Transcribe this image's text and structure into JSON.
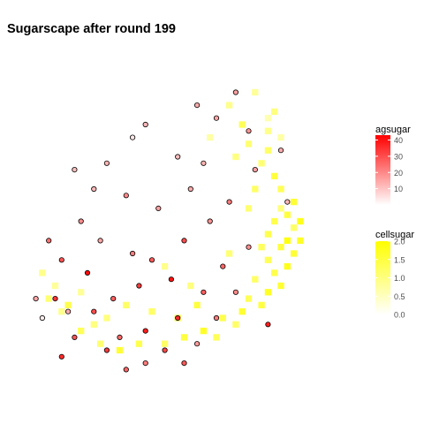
{
  "title": "Sugarscape after round 199",
  "colors": {
    "background": "#ffffff",
    "agent_outline": "#000000",
    "agent_low": "#ffffff",
    "agent_high": "#ff0000",
    "cell_low": "#ffffff",
    "cell_high": "#ffff00"
  },
  "chart_data": {
    "type": "scatter",
    "title": "Sugarscape after round 199",
    "xlabel": "",
    "ylabel": "",
    "grid": false,
    "axes_visible": false,
    "legend_placement": "right",
    "xlim": [
      0,
      50
    ],
    "ylim": [
      0,
      50
    ],
    "legends": [
      {
        "name": "agsugar",
        "type": "colorbar",
        "min": 0,
        "max": 43,
        "ticks": [
          10,
          20,
          30,
          40
        ],
        "tick_labels": [
          "10",
          "20",
          "30",
          "40"
        ],
        "color_low": "#ffffff",
        "color_high": "#ff0000"
      },
      {
        "name": "cellsugar",
        "type": "colorbar",
        "min": 0,
        "max": 2,
        "ticks": [
          0,
          0.5,
          1,
          1.5,
          2
        ],
        "tick_labels": [
          "0.0",
          "0.5",
          "1.0",
          "1.5",
          "2.0"
        ],
        "color_low": "#ffffff",
        "color_high": "#ffff00"
      }
    ],
    "series": [
      {
        "layer": "cells",
        "color_by": "cellsugar",
        "description_source": "visible yellow tiles",
        "points": [
          {
            "x": 36,
            "y": 45,
            "cellsugar": 0.8
          },
          {
            "x": 39,
            "y": 42,
            "cellsugar": 1.0
          },
          {
            "x": 38,
            "y": 41,
            "cellsugar": 0.6
          },
          {
            "x": 34,
            "y": 40,
            "cellsugar": 1.3
          },
          {
            "x": 38,
            "y": 39,
            "cellsugar": 0.9
          },
          {
            "x": 40,
            "y": 38,
            "cellsugar": 0.7
          },
          {
            "x": 38,
            "y": 36,
            "cellsugar": 1.2
          },
          {
            "x": 37,
            "y": 34,
            "cellsugar": 1.1
          },
          {
            "x": 39,
            "y": 32,
            "cellsugar": 1.5
          },
          {
            "x": 40,
            "y": 30,
            "cellsugar": 1.3
          },
          {
            "x": 42,
            "y": 28,
            "cellsugar": 1.6
          },
          {
            "x": 40,
            "y": 27,
            "cellsugar": 1.0
          },
          {
            "x": 41,
            "y": 26,
            "cellsugar": 1.5
          },
          {
            "x": 39,
            "y": 25,
            "cellsugar": 1.4
          },
          {
            "x": 43,
            "y": 25,
            "cellsugar": 1.8
          },
          {
            "x": 42,
            "y": 24,
            "cellsugar": 1.2
          },
          {
            "x": 38,
            "y": 23,
            "cellsugar": 1.4
          },
          {
            "x": 41,
            "y": 22,
            "cellsugar": 1.9
          },
          {
            "x": 43,
            "y": 22,
            "cellsugar": 1.7
          },
          {
            "x": 40,
            "y": 21,
            "cellsugar": 1.5
          },
          {
            "x": 42,
            "y": 20,
            "cellsugar": 1.6
          },
          {
            "x": 38,
            "y": 19,
            "cellsugar": 1.3
          },
          {
            "x": 41,
            "y": 18,
            "cellsugar": 1.8
          },
          {
            "x": 39,
            "y": 17,
            "cellsugar": 1.4
          },
          {
            "x": 36,
            "y": 16,
            "cellsugar": 1.2
          },
          {
            "x": 40,
            "y": 15,
            "cellsugar": 1.6
          },
          {
            "x": 38,
            "y": 14,
            "cellsugar": 1.7
          },
          {
            "x": 35,
            "y": 13,
            "cellsugar": 1.3
          },
          {
            "x": 37,
            "y": 12,
            "cellsugar": 1.5
          },
          {
            "x": 34,
            "y": 11,
            "cellsugar": 1.6
          },
          {
            "x": 31,
            "y": 10,
            "cellsugar": 1.4
          },
          {
            "x": 33,
            "y": 9,
            "cellsugar": 1.2
          },
          {
            "x": 28,
            "y": 8,
            "cellsugar": 1.7
          },
          {
            "x": 30,
            "y": 7,
            "cellsugar": 1.3
          },
          {
            "x": 25,
            "y": 7,
            "cellsugar": 1.5
          },
          {
            "x": 22,
            "y": 6,
            "cellsugar": 1.2
          },
          {
            "x": 18,
            "y": 6,
            "cellsugar": 1.4
          },
          {
            "x": 15,
            "y": 5,
            "cellsugar": 1.6
          },
          {
            "x": 12,
            "y": 6,
            "cellsugar": 1.1
          },
          {
            "x": 9,
            "y": 8,
            "cellsugar": 1.3
          },
          {
            "x": 11,
            "y": 9,
            "cellsugar": 1.0
          },
          {
            "x": 6,
            "y": 11,
            "cellsugar": 0.9
          },
          {
            "x": 4,
            "y": 13,
            "cellsugar": 1.1
          },
          {
            "x": 7,
            "y": 12,
            "cellsugar": 1.4
          },
          {
            "x": 20,
            "y": 11,
            "cellsugar": 1.2
          },
          {
            "x": 24,
            "y": 10,
            "cellsugar": 1.3
          },
          {
            "x": 27,
            "y": 12,
            "cellsugar": 1.5
          },
          {
            "x": 13,
            "y": 10,
            "cellsugar": 1.0
          },
          {
            "x": 5,
            "y": 15,
            "cellsugar": 0.8
          },
          {
            "x": 3,
            "y": 17,
            "cellsugar": 0.9
          },
          {
            "x": 29,
            "y": 38,
            "cellsugar": 0.7
          },
          {
            "x": 32,
            "y": 43,
            "cellsugar": 0.9
          },
          {
            "x": 35,
            "y": 37,
            "cellsugar": 1.1
          },
          {
            "x": 33,
            "y": 35,
            "cellsugar": 1.0
          },
          {
            "x": 36,
            "y": 30,
            "cellsugar": 1.2
          },
          {
            "x": 35,
            "y": 27,
            "cellsugar": 1.1
          },
          {
            "x": 37,
            "y": 21,
            "cellsugar": 1.3
          },
          {
            "x": 32,
            "y": 20,
            "cellsugar": 1.1
          },
          {
            "x": 16,
            "y": 12,
            "cellsugar": 1.2
          },
          {
            "x": 26,
            "y": 15,
            "cellsugar": 1.0
          },
          {
            "x": 9,
            "y": 14,
            "cellsugar": 0.8
          },
          {
            "x": 22,
            "y": 18,
            "cellsugar": 0.9
          }
        ]
      },
      {
        "layer": "agents",
        "color_by": "agsugar",
        "shape": "circle",
        "points": [
          {
            "x": 17,
            "y": 38,
            "agsugar": 4
          },
          {
            "x": 38,
            "y": 9,
            "agsugar": 38
          },
          {
            "x": 3,
            "y": 10,
            "agsugar": 3
          },
          {
            "x": 5,
            "y": 13,
            "agsugar": 34
          },
          {
            "x": 6,
            "y": 4,
            "agsugar": 36
          },
          {
            "x": 7,
            "y": 11,
            "agsugar": 14
          },
          {
            "x": 10,
            "y": 17,
            "agsugar": 41
          },
          {
            "x": 14,
            "y": 13,
            "agsugar": 27
          },
          {
            "x": 12,
            "y": 22,
            "agsugar": 15
          },
          {
            "x": 17,
            "y": 20,
            "agsugar": 22
          },
          {
            "x": 20,
            "y": 19,
            "agsugar": 28
          },
          {
            "x": 23,
            "y": 16,
            "agsugar": 40
          },
          {
            "x": 25,
            "y": 22,
            "agsugar": 30
          },
          {
            "x": 29,
            "y": 25,
            "agsugar": 18
          },
          {
            "x": 31,
            "y": 18,
            "agsugar": 26
          },
          {
            "x": 33,
            "y": 14,
            "agsugar": 20
          },
          {
            "x": 19,
            "y": 8,
            "agsugar": 38
          },
          {
            "x": 15,
            "y": 7,
            "agsugar": 25
          },
          {
            "x": 22,
            "y": 5,
            "agsugar": 31
          },
          {
            "x": 27,
            "y": 6,
            "agsugar": 17
          },
          {
            "x": 30,
            "y": 10,
            "agsugar": 22
          },
          {
            "x": 9,
            "y": 25,
            "agsugar": 19
          },
          {
            "x": 4,
            "y": 22,
            "agsugar": 24
          },
          {
            "x": 6,
            "y": 19,
            "agsugar": 29
          },
          {
            "x": 11,
            "y": 30,
            "agsugar": 12
          },
          {
            "x": 16,
            "y": 29,
            "agsugar": 20
          },
          {
            "x": 21,
            "y": 27,
            "agsugar": 16
          },
          {
            "x": 26,
            "y": 30,
            "agsugar": 14
          },
          {
            "x": 24,
            "y": 35,
            "agsugar": 11
          },
          {
            "x": 28,
            "y": 34,
            "agsugar": 13
          },
          {
            "x": 30,
            "y": 41,
            "agsugar": 15
          },
          {
            "x": 35,
            "y": 39,
            "agsugar": 18
          },
          {
            "x": 36,
            "y": 33,
            "agsugar": 16
          },
          {
            "x": 40,
            "y": 36,
            "agsugar": 14
          },
          {
            "x": 41,
            "y": 28,
            "agsugar": 12
          },
          {
            "x": 13,
            "y": 34,
            "agsugar": 13
          },
          {
            "x": 8,
            "y": 33,
            "agsugar": 11
          },
          {
            "x": 19,
            "y": 40,
            "agsugar": 12
          },
          {
            "x": 27,
            "y": 43,
            "agsugar": 14
          },
          {
            "x": 33,
            "y": 45,
            "agsugar": 16
          },
          {
            "x": 32,
            "y": 28,
            "agsugar": 22
          },
          {
            "x": 18,
            "y": 15,
            "agsugar": 33
          },
          {
            "x": 11,
            "y": 11,
            "agsugar": 30
          },
          {
            "x": 24,
            "y": 10,
            "agsugar": 36
          },
          {
            "x": 28,
            "y": 14,
            "agsugar": 27
          },
          {
            "x": 13,
            "y": 5,
            "agsugar": 33
          },
          {
            "x": 8,
            "y": 7,
            "agsugar": 29
          },
          {
            "x": 35,
            "y": 21,
            "agsugar": 19
          },
          {
            "x": 2,
            "y": 13,
            "agsugar": 15
          },
          {
            "x": 16,
            "y": 2,
            "agsugar": 26
          },
          {
            "x": 19,
            "y": 3,
            "agsugar": 22
          },
          {
            "x": 25,
            "y": 3,
            "agsugar": 28
          }
        ]
      }
    ]
  }
}
